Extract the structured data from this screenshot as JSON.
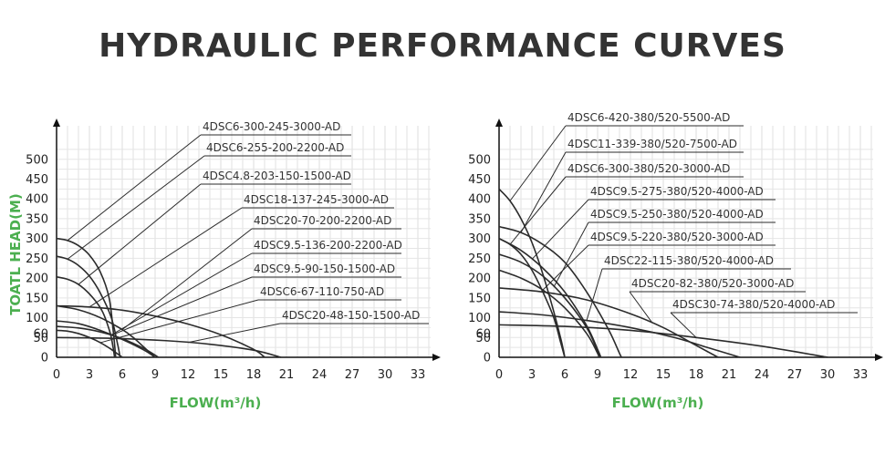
{
  "title": "HYDRAULIC PERFORMANCE CURVES",
  "chart_data": [
    {
      "type": "line",
      "xlabel": "FLOW(m³/h)",
      "ylabel": "TOATL HEAD(M)",
      "xlim": [
        0,
        36
      ],
      "ylim": [
        0,
        540
      ],
      "xticks": [
        0,
        3,
        6,
        9,
        12,
        15,
        18,
        21,
        24,
        27,
        30,
        33
      ],
      "yticks": [
        0,
        50,
        60,
        100,
        150,
        200,
        250,
        300,
        350,
        400,
        450,
        500
      ],
      "grid": true,
      "series": [
        {
          "name": "4DSC6-300-245-3000-AD",
          "values": [
            [
              0,
              300
            ],
            [
              1,
              295
            ],
            [
              2,
              282
            ],
            [
              3,
              258
            ],
            [
              4,
              215
            ],
            [
              4.8,
              150
            ],
            [
              5.2,
              60
            ],
            [
              5.4,
              0
            ]
          ]
        },
        {
          "name": "4DSC6-255-200-2200-AD",
          "values": [
            [
              0,
              255
            ],
            [
              1,
              248
            ],
            [
              2,
              232
            ],
            [
              3,
              205
            ],
            [
              4,
              162
            ],
            [
              5,
              100
            ],
            [
              5.6,
              30
            ],
            [
              5.8,
              0
            ]
          ]
        },
        {
          "name": "4DSC4.8-203-150-1500-AD",
          "values": [
            [
              0,
              203
            ],
            [
              1,
              197
            ],
            [
              2,
              184
            ],
            [
              3,
              160
            ],
            [
              4,
              125
            ],
            [
              4.5,
              95
            ],
            [
              5,
              50
            ],
            [
              5.3,
              0
            ]
          ]
        },
        {
          "name": "4DSC18-137-245-3000-AD",
          "values": [
            [
              0,
              130
            ],
            [
              3,
              127
            ],
            [
              6,
              119
            ],
            [
              9,
              104
            ],
            [
              12,
              84
            ],
            [
              15,
              57
            ],
            [
              18,
              20
            ],
            [
              19,
              0
            ]
          ]
        },
        {
          "name": "4DSC20-70-200-2200-AD",
          "values": [
            [
              0,
              130
            ],
            [
              2,
              120
            ],
            [
              4,
              100
            ],
            [
              6,
              70
            ],
            [
              7,
              50
            ],
            [
              8,
              25
            ],
            [
              9,
              0
            ]
          ]
        },
        {
          "name": "4DSC9.5-136-200-2200-AD",
          "values": [
            [
              0,
              92
            ],
            [
              2,
              85
            ],
            [
              4,
              68
            ],
            [
              6,
              45
            ],
            [
              8,
              18
            ],
            [
              9,
              0
            ]
          ]
        },
        {
          "name": "4DSC9.5-90-150-1500-AD",
          "values": [
            [
              0,
              78
            ],
            [
              2,
              74
            ],
            [
              4,
              64
            ],
            [
              6,
              47
            ],
            [
              8,
              22
            ],
            [
              9.3,
              0
            ]
          ]
        },
        {
          "name": "4DSC6-67-110-750-AD",
          "values": [
            [
              0,
              68
            ],
            [
              1,
              66
            ],
            [
              2,
              60
            ],
            [
              3,
              50
            ],
            [
              4,
              37
            ],
            [
              5,
              20
            ],
            [
              6,
              0
            ]
          ]
        },
        {
          "name": "4DSC20-48-150-1500-AD",
          "values": [
            [
              0,
              50
            ],
            [
              5,
              48
            ],
            [
              10,
              42
            ],
            [
              14,
              33
            ],
            [
              18,
              18
            ],
            [
              20.5,
              0
            ]
          ]
        }
      ]
    },
    {
      "type": "line",
      "xlabel": "FLOW(m³/h)",
      "ylabel": "",
      "xlim": [
        0,
        36
      ],
      "ylim": [
        0,
        540
      ],
      "xticks": [
        0,
        3,
        6,
        9,
        12,
        15,
        18,
        21,
        24,
        27,
        30,
        33
      ],
      "yticks": [
        0,
        50,
        60,
        100,
        150,
        200,
        250,
        300,
        350,
        400,
        450,
        500
      ],
      "grid": true,
      "series": [
        {
          "name": "4DSC6-420-380/520-5500-AD",
          "values": [
            [
              0,
              425
            ],
            [
              1,
              395
            ],
            [
              2,
              350
            ],
            [
              3,
              290
            ],
            [
              4,
              210
            ],
            [
              5,
              115
            ],
            [
              5.7,
              40
            ],
            [
              6,
              0
            ]
          ]
        },
        {
          "name": "4DSC11-339-380/520-7500-AD",
          "values": [
            [
              0,
              330
            ],
            [
              2,
              315
            ],
            [
              4,
              285
            ],
            [
              6,
              240
            ],
            [
              8,
              165
            ],
            [
              10,
              70
            ],
            [
              11,
              10
            ],
            [
              11.2,
              0
            ]
          ]
        },
        {
          "name": "4DSC6-300-380/520-3000-AD",
          "values": [
            [
              0,
              300
            ],
            [
              1,
              285
            ],
            [
              2,
              260
            ],
            [
              3,
              220
            ],
            [
              4,
              165
            ],
            [
              5,
              100
            ],
            [
              5.6,
              40
            ],
            [
              6,
              0
            ]
          ]
        },
        {
          "name": "4DSC9.5-275-380/520-4000-AD",
          "values": [
            [
              0,
              300
            ],
            [
              2,
              270
            ],
            [
              4,
              225
            ],
            [
              6,
              165
            ],
            [
              8,
              80
            ],
            [
              9,
              20
            ],
            [
              9.3,
              0
            ]
          ]
        },
        {
          "name": "4DSC9.5-250-380/520-4000-AD",
          "values": [
            [
              0,
              260
            ],
            [
              2,
              240
            ],
            [
              4,
              205
            ],
            [
              6,
              150
            ],
            [
              8,
              75
            ],
            [
              9,
              15
            ],
            [
              9.2,
              0
            ]
          ]
        },
        {
          "name": "4DSC9.5-220-380/520-3000-AD",
          "values": [
            [
              0,
              220
            ],
            [
              2,
              200
            ],
            [
              4,
              170
            ],
            [
              6,
              125
            ],
            [
              8,
              60
            ],
            [
              9,
              10
            ],
            [
              9.1,
              0
            ]
          ]
        },
        {
          "name": "4DSC22-115-380/520-4000-AD",
          "values": [
            [
              0,
              115
            ],
            [
              4,
              107
            ],
            [
              8,
              93
            ],
            [
              12,
              75
            ],
            [
              16,
              50
            ],
            [
              19,
              25
            ],
            [
              22,
              0
            ]
          ]
        },
        {
          "name": "4DSC20-82-380/520-3000-AD",
          "values": [
            [
              0,
              175
            ],
            [
              4,
              165
            ],
            [
              8,
              145
            ],
            [
              12,
              110
            ],
            [
              15,
              75
            ],
            [
              18,
              30
            ],
            [
              20,
              0
            ]
          ]
        },
        {
          "name": "4DSC30-74-380/520-4000-AD",
          "values": [
            [
              0,
              82
            ],
            [
              6,
              78
            ],
            [
              12,
              68
            ],
            [
              18,
              50
            ],
            [
              24,
              28
            ],
            [
              30,
              0
            ]
          ]
        }
      ]
    }
  ]
}
